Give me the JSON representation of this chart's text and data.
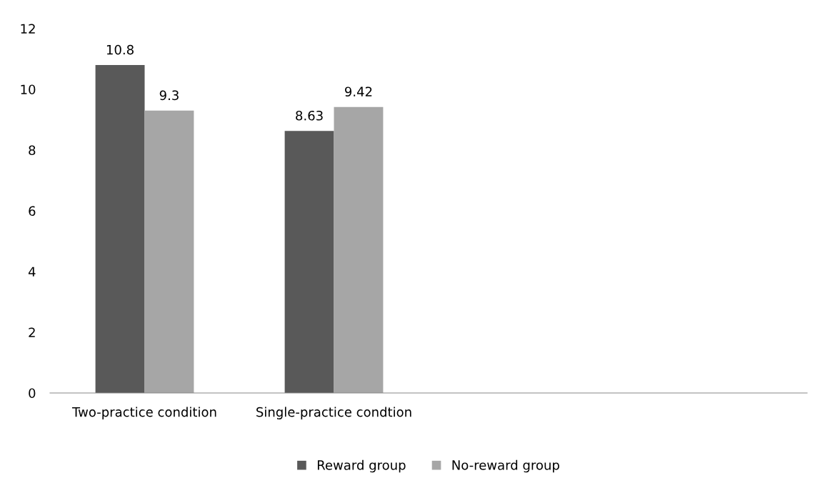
{
  "chart_data": {
    "type": "bar",
    "categories": [
      "Two-practice condition",
      "Single-practice condtion",
      null,
      null
    ],
    "series": [
      {
        "name": "Reward group",
        "color": "#595959",
        "values": [
          10.8,
          8.63,
          null,
          null
        ]
      },
      {
        "name": "No-reward group",
        "color": "#a6a6a6",
        "values": [
          9.3,
          9.42,
          null,
          null
        ]
      }
    ],
    "ylim": [
      0,
      12
    ],
    "yticks": [
      0,
      2,
      4,
      6,
      8,
      10,
      12
    ],
    "data_labels": true,
    "legend": "bottom",
    "grid": false
  }
}
